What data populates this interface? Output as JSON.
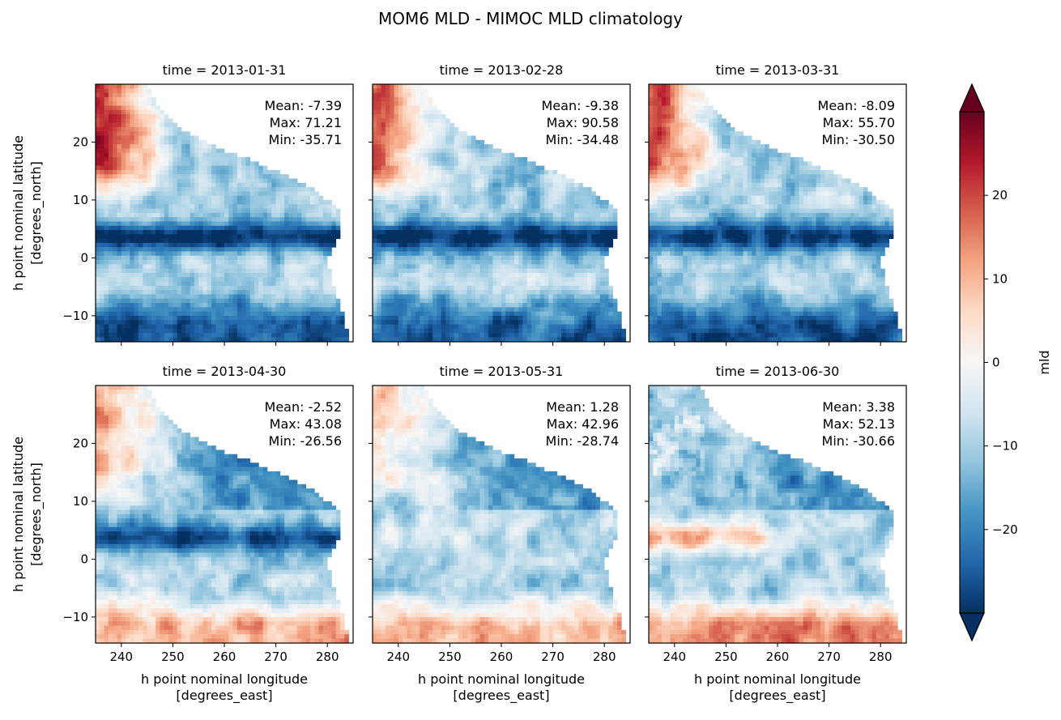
{
  "title": "MOM6 MLD - MIMOC MLD climatology",
  "chart_data": {
    "type": "heatmap",
    "panel_count": 6,
    "grid": "3 columns x 2 rows",
    "grid_lines": false,
    "panels": [
      {
        "title": "time = 2013-01-31",
        "stats": {
          "mean": "Mean: -7.39",
          "max": "Max: 71.21",
          "min": "Min: -35.71"
        }
      },
      {
        "title": "time = 2013-02-28",
        "stats": {
          "mean": "Mean: -9.38",
          "max": "Max: 90.58",
          "min": "Min: -34.48"
        }
      },
      {
        "title": "time = 2013-03-31",
        "stats": {
          "mean": "Mean: -8.09",
          "max": "Max: 55.70",
          "min": "Min: -30.50"
        }
      },
      {
        "title": "time = 2013-04-30",
        "stats": {
          "mean": "Mean: -2.52",
          "max": "Max: 43.08",
          "min": "Min: -26.56"
        }
      },
      {
        "title": "time = 2013-05-31",
        "stats": {
          "mean": "Mean: 1.28",
          "max": "Max: 42.96",
          "min": "Min: -28.74"
        }
      },
      {
        "title": "time = 2013-06-30",
        "stats": {
          "mean": "Mean: 3.38",
          "max": "Max: 52.13",
          "min": "Min: -30.66"
        }
      }
    ],
    "x_axis": {
      "label_line1": "h point nominal longitude",
      "label_line2": "[degrees_east]",
      "range": [
        235,
        285
      ],
      "ticks": [
        240,
        250,
        260,
        270,
        280
      ],
      "tick_labels": [
        "240",
        "250",
        "260",
        "270",
        "280"
      ]
    },
    "y_axis": {
      "label_line1": "h point nominal latitude",
      "label_line2": "[degrees_north]",
      "range": [
        -14.5,
        30
      ],
      "ticks": [
        -10,
        0,
        10,
        20
      ],
      "tick_labels": [
        "−10",
        "0",
        "10",
        "20"
      ]
    },
    "colorbar": {
      "label": "mld",
      "colormap": "RdBu_r",
      "range": [
        -30,
        30
      ],
      "extend": "both",
      "ticks": [
        -20,
        -10,
        0,
        10,
        20
      ],
      "tick_labels": [
        "−20",
        "−10",
        "0",
        "10",
        "20"
      ],
      "colors": [
        "#053061",
        "#2166ac",
        "#4393c3",
        "#92c5de",
        "#d1e5f0",
        "#f7f7f7",
        "#fddbc7",
        "#f4a582",
        "#d6604d",
        "#b2182b",
        "#67001f"
      ]
    }
  }
}
